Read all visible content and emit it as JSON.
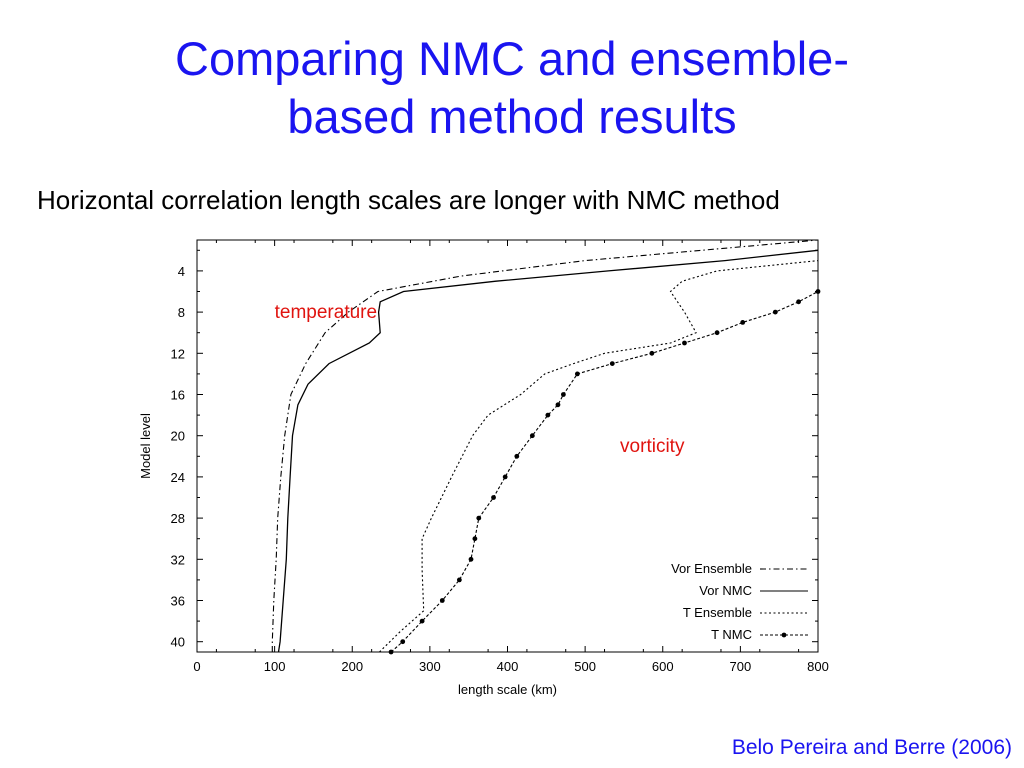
{
  "slide": {
    "title_line1": "Comparing NMC and ensemble-",
    "title_line2": "based method results",
    "subtitle": "Horizontal correlation length scales are longer with NMC method",
    "citation": "Belo Pereira and Berre (2006)"
  },
  "colors": {
    "title": "#1a14f0",
    "annotation": "#e0140f",
    "series": "#000000"
  },
  "chart_data": {
    "type": "line",
    "xlabel": "length scale (km)",
    "ylabel": "Model level",
    "xlim": [
      0,
      800
    ],
    "ylim": [
      41,
      1
    ],
    "x_ticks": [
      0,
      100,
      200,
      300,
      400,
      500,
      600,
      700,
      800
    ],
    "y_ticks": [
      4,
      8,
      12,
      16,
      20,
      24,
      28,
      32,
      36,
      40
    ],
    "grid": false,
    "legend_position": "bottom-right",
    "annotations": [
      {
        "text": "temperature",
        "x": 100,
        "y": 8,
        "color": "#e0140f"
      },
      {
        "text": "vorticity",
        "x": 545,
        "y": 21,
        "color": "#e0140f"
      }
    ],
    "series": [
      {
        "name": "Vor Ensemble",
        "style": "dash-dot",
        "points": [
          [
            97,
            41
          ],
          [
            97,
            40
          ],
          [
            99,
            36
          ],
          [
            102,
            32
          ],
          [
            104,
            28
          ],
          [
            108,
            24
          ],
          [
            113,
            20
          ],
          [
            121,
            16
          ],
          [
            140,
            13
          ],
          [
            165,
            10
          ],
          [
            195,
            8
          ],
          [
            233,
            6
          ],
          [
            340,
            4.5
          ],
          [
            500,
            3
          ],
          [
            650,
            2
          ],
          [
            800,
            1
          ]
        ]
      },
      {
        "name": "Vor NMC",
        "style": "solid",
        "points": [
          [
            105,
            41
          ],
          [
            107,
            40
          ],
          [
            111,
            36
          ],
          [
            115,
            32
          ],
          [
            117,
            28
          ],
          [
            120,
            24
          ],
          [
            123,
            20
          ],
          [
            130,
            17
          ],
          [
            143,
            15
          ],
          [
            170,
            13
          ],
          [
            222,
            11
          ],
          [
            236,
            10
          ],
          [
            234,
            8
          ],
          [
            236,
            7
          ],
          [
            266,
            6
          ],
          [
            385,
            5
          ],
          [
            530,
            4
          ],
          [
            680,
            3
          ],
          [
            800,
            2
          ]
        ]
      },
      {
        "name": "T Ensemble",
        "style": "dotted",
        "points": [
          [
            235,
            41
          ],
          [
            262,
            39
          ],
          [
            292,
            37
          ],
          [
            290,
            33
          ],
          [
            290,
            30
          ],
          [
            302,
            28
          ],
          [
            328,
            24
          ],
          [
            355,
            20
          ],
          [
            375,
            18
          ],
          [
            417,
            16
          ],
          [
            448,
            14
          ],
          [
            485,
            13
          ],
          [
            525,
            12
          ],
          [
            610,
            11
          ],
          [
            643,
            10
          ],
          [
            628,
            8
          ],
          [
            610,
            6
          ],
          [
            625,
            5
          ],
          [
            670,
            4
          ],
          [
            800,
            3
          ]
        ]
      },
      {
        "name": "T NMC",
        "style": "dots-line",
        "points": [
          [
            250,
            41
          ],
          [
            265,
            40
          ],
          [
            290,
            38
          ],
          [
            316,
            36
          ],
          [
            338,
            34
          ],
          [
            353,
            32
          ],
          [
            358,
            30
          ],
          [
            363,
            28
          ],
          [
            382,
            26
          ],
          [
            397,
            24
          ],
          [
            412,
            22
          ],
          [
            432,
            20
          ],
          [
            452,
            18
          ],
          [
            465,
            17
          ],
          [
            472,
            16
          ],
          [
            490,
            14
          ],
          [
            535,
            13
          ],
          [
            586,
            12
          ],
          [
            628,
            11
          ],
          [
            670,
            10
          ],
          [
            703,
            9
          ],
          [
            745,
            8
          ],
          [
            775,
            7
          ],
          [
            800,
            6
          ]
        ]
      }
    ]
  }
}
